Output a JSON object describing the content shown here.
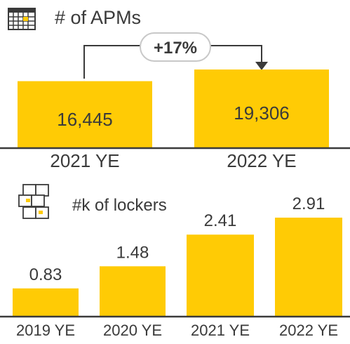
{
  "colors": {
    "bar": "#FFCB05",
    "text": "#3a3a3a",
    "axis": "#3a3a3a",
    "badge_border": "#c8c8c8"
  },
  "chart_data": [
    {
      "type": "bar",
      "title": "# of APMs",
      "icon": "apm-locker-grid-icon",
      "categories": [
        "2021 YE",
        "2022 YE"
      ],
      "values": [
        16445,
        19306
      ],
      "value_labels": [
        "16,445",
        "19,306"
      ],
      "growth_label": "+17%",
      "ylim": [
        0,
        20000
      ]
    },
    {
      "type": "bar",
      "title": "#k of lockers",
      "icon": "locker-boxes-icon",
      "categories": [
        "2019 YE",
        "2020 YE",
        "2021 YE",
        "2022 YE"
      ],
      "values": [
        0.83,
        1.48,
        2.41,
        2.91
      ],
      "value_labels": [
        "0.83",
        "1.48",
        "2.41",
        "2.91"
      ],
      "ylim": [
        0,
        3.0
      ]
    }
  ]
}
